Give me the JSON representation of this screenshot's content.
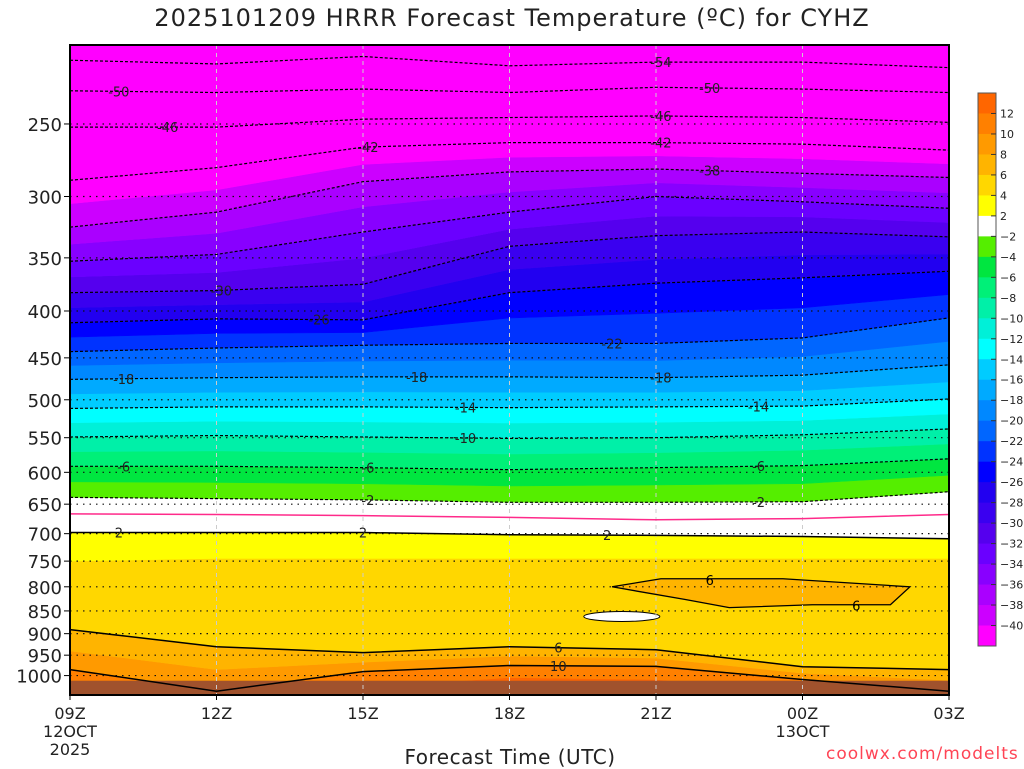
{
  "chart_data": {
    "type": "heatmap",
    "title": "2025101209 HRRR Forecast Temperature (ºC) for CYHZ",
    "xlabel": "Forecast Time (UTC)",
    "ylabel": "",
    "credit": "coolwx.com/modelts",
    "x_hours": [
      0,
      3,
      6,
      9,
      12,
      15,
      18
    ],
    "xlim": [
      0,
      18
    ],
    "ylim": [
      1050,
      205
    ],
    "y_scale": "log-pressure",
    "x_ticks": [
      {
        "hour": 0,
        "label": "09Z",
        "sub": [
          "12OCT",
          "2025"
        ]
      },
      {
        "hour": 3,
        "label": "12Z",
        "sub": []
      },
      {
        "hour": 6,
        "label": "15Z",
        "sub": []
      },
      {
        "hour": 9,
        "label": "18Z",
        "sub": []
      },
      {
        "hour": 12,
        "label": "21Z",
        "sub": []
      },
      {
        "hour": 15,
        "label": "00Z",
        "sub": [
          "13OCT"
        ]
      },
      {
        "hour": 18,
        "label": "03Z",
        "sub": []
      }
    ],
    "y_ticks": [
      250,
      300,
      350,
      400,
      450,
      500,
      550,
      600,
      650,
      700,
      750,
      800,
      850,
      900,
      950,
      1000
    ],
    "ground_pressure": 1013,
    "isotherms": [
      {
        "level": -54,
        "line": "dashed",
        "p": [
          213,
          215,
          211,
          216,
          214,
          214,
          217
        ],
        "labels": [
          12.1
        ]
      },
      {
        "level": -50,
        "line": "dashed",
        "p": [
          230,
          231,
          229,
          231,
          228,
          229,
          231
        ],
        "labels": [
          1.0,
          13.1
        ]
      },
      {
        "level": -46,
        "line": "dashed",
        "p": [
          252,
          252,
          247,
          246,
          245,
          246,
          249
        ],
        "labels": [
          2.0,
          12.1
        ]
      },
      {
        "level": -42,
        "line": "dashed",
        "p": [
          288,
          279,
          265,
          262,
          262,
          263,
          267
        ],
        "labels": [
          6.1,
          12.1
        ]
      },
      {
        "level": -38,
        "line": "dashed",
        "p": [
          324,
          312,
          289,
          282,
          280,
          283,
          286
        ],
        "labels": [
          13.1
        ]
      },
      {
        "level": -34,
        "line": "dashed",
        "p": [
          353,
          347,
          328,
          312,
          300,
          304,
          309
        ],
        "labels": []
      },
      {
        "level": -30,
        "line": "dashed",
        "p": [
          382,
          380,
          374,
          340,
          331,
          328,
          332
        ],
        "labels": [
          3.1
        ]
      },
      {
        "level": -26,
        "line": "dashed",
        "p": [
          412,
          408,
          409,
          382,
          373,
          368,
          362
        ],
        "labels": [
          5.1
        ]
      },
      {
        "level": -22,
        "line": "dashed",
        "p": [
          443,
          439,
          436,
          434,
          434,
          428,
          407
        ],
        "labels": [
          11.1
        ]
      },
      {
        "level": -18,
        "line": "dashed",
        "p": [
          475,
          473,
          472,
          472,
          473,
          470,
          458
        ],
        "labels": [
          1.1,
          7.1,
          12.1
        ]
      },
      {
        "level": -14,
        "line": "dashed",
        "p": [
          511,
          509,
          509,
          510,
          509,
          508,
          499
        ],
        "labels": [
          8.1,
          14.1
        ]
      },
      {
        "level": -10,
        "line": "dashed",
        "p": [
          549,
          547,
          549,
          551,
          550,
          546,
          538
        ],
        "labels": [
          8.1
        ]
      },
      {
        "level": -6,
        "line": "dashed",
        "p": [
          591,
          591,
          593,
          596,
          593,
          590,
          580
        ],
        "labels": [
          1.1,
          6.1,
          14.1
        ]
      },
      {
        "level": -2,
        "line": "dashed",
        "p": [
          639,
          641,
          643,
          647,
          647,
          646,
          630
        ],
        "labels": [
          6.1,
          14.1
        ]
      },
      {
        "level": 0,
        "line": "zero",
        "p": [
          666,
          667,
          669,
          672,
          676,
          674,
          667
        ],
        "labels": []
      },
      {
        "level": 2,
        "line": "solid",
        "p": [
          698,
          698,
          698,
          702,
          703,
          705,
          709
        ],
        "labels": [
          1.0,
          6.0,
          11.0
        ]
      },
      {
        "level": 4,
        "line": "none",
        "p": [
          750,
          745,
          745,
          745,
          745,
          745,
          745
        ],
        "labels": []
      },
      {
        "level": 6,
        "line": "solid",
        "p": [
          891,
          930,
          944,
          930,
          937,
          978,
          985
        ],
        "labels": [
          10.0
        ]
      },
      {
        "level": 8,
        "line": "none",
        "p": [
          940,
          985,
          967,
          952,
          957,
          994,
          1012
        ],
        "labels": []
      },
      {
        "level": 10,
        "line": "solid",
        "p": [
          985,
          1040,
          990,
          975,
          977,
          1010,
          1040
        ],
        "labels": [
          10.0
        ]
      },
      {
        "level": 12,
        "line": "none",
        "p": [
          1040,
          1040,
          1030,
          1005,
          1010,
          1040,
          1040
        ],
        "labels": []
      }
    ],
    "warm_pocket": {
      "level": 6,
      "label_hours": [
        13.1,
        16.1
      ],
      "points": [
        [
          11.1,
          800
        ],
        [
          12.1,
          784
        ],
        [
          14.6,
          784
        ],
        [
          17.2,
          800
        ],
        [
          16.8,
          837
        ],
        [
          15.2,
          837
        ],
        [
          13.5,
          843
        ],
        [
          12.6,
          826
        ]
      ]
    },
    "white_pocket": {
      "center": [
        11.3,
        862
      ]
    },
    "colorbar": {
      "labels": [
        "12",
        "10",
        "8",
        "6",
        "4",
        "2",
        "-2",
        "-4",
        "-6",
        "-8",
        "-10",
        "-12",
        "-14",
        "-16",
        "-18",
        "-20",
        "-22",
        "-24",
        "-26",
        "-28",
        "-30",
        "-32",
        "-34",
        "-36",
        "-38",
        "-40"
      ],
      "colors": [
        "#ff6600",
        "#ff8000",
        "#ff9a00",
        "#ffb400",
        "#ffd700",
        "#ffff00",
        "#ffffff",
        "#55ee00",
        "#00e640",
        "#00f078",
        "#00f0a8",
        "#00f0d8",
        "#00ffff",
        "#00ccff",
        "#00aaff",
        "#0088ff",
        "#0066ff",
        "#0033ff",
        "#0000ff",
        "#2200f0",
        "#3a00f0",
        "#5500ee",
        "#6a00ff",
        "#8800ff",
        "#aa00ff",
        "#cc00ff",
        "#ff00ff"
      ],
      "band_edges": [
        12,
        10,
        8,
        6,
        4,
        2,
        -2,
        -4,
        -6,
        -8,
        -10,
        -12,
        -14,
        -16,
        -18,
        -20,
        -22,
        -24,
        -26,
        -28,
        -30,
        -32,
        -34,
        -36,
        -38,
        -40
      ]
    },
    "ground_color": "#a0522d",
    "zero_line_color": "#ff2a8a"
  }
}
